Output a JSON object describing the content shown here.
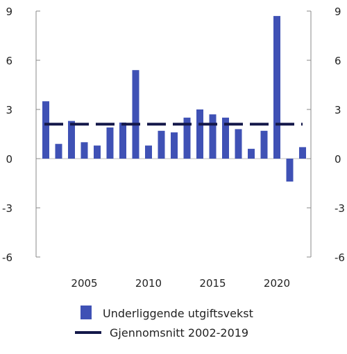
{
  "chart_data": {
    "type": "bar",
    "title": "",
    "xlabel": "",
    "ylabel": "",
    "ylim": [
      -6,
      9
    ],
    "y_ticks": [
      9,
      6,
      3,
      0,
      -3,
      -6
    ],
    "y_tick_labels": [
      "9",
      "6",
      "3",
      "0",
      "-3",
      "-6"
    ],
    "y_axes": "left-and-right",
    "x_tick_labels": [
      "2005",
      "2010",
      "2015",
      "2020"
    ],
    "x_tick_years": [
      2005,
      2010,
      2015,
      2020
    ],
    "grid": false,
    "legend_position": "bottom",
    "x": [
      2002,
      2003,
      2004,
      2005,
      2006,
      2007,
      2008,
      2009,
      2010,
      2011,
      2012,
      2013,
      2014,
      2015,
      2016,
      2017,
      2018,
      2019,
      2020,
      2021,
      2022
    ],
    "series": [
      {
        "name": "Underliggende utgiftsvekst",
        "type": "bar",
        "color": "#3f51b5",
        "values": [
          3.5,
          0.9,
          2.3,
          1.0,
          0.8,
          1.9,
          2.2,
          5.4,
          0.8,
          1.7,
          1.6,
          2.5,
          3.0,
          2.7,
          2.5,
          1.8,
          0.6,
          1.7,
          8.7,
          -1.4,
          0.7
        ]
      },
      {
        "name": "Gjennomsnitt 2002-2019",
        "type": "line",
        "style": "dashed",
        "color": "#14184a",
        "value": 2.1,
        "x_range": [
          2002,
          2022
        ]
      }
    ]
  }
}
